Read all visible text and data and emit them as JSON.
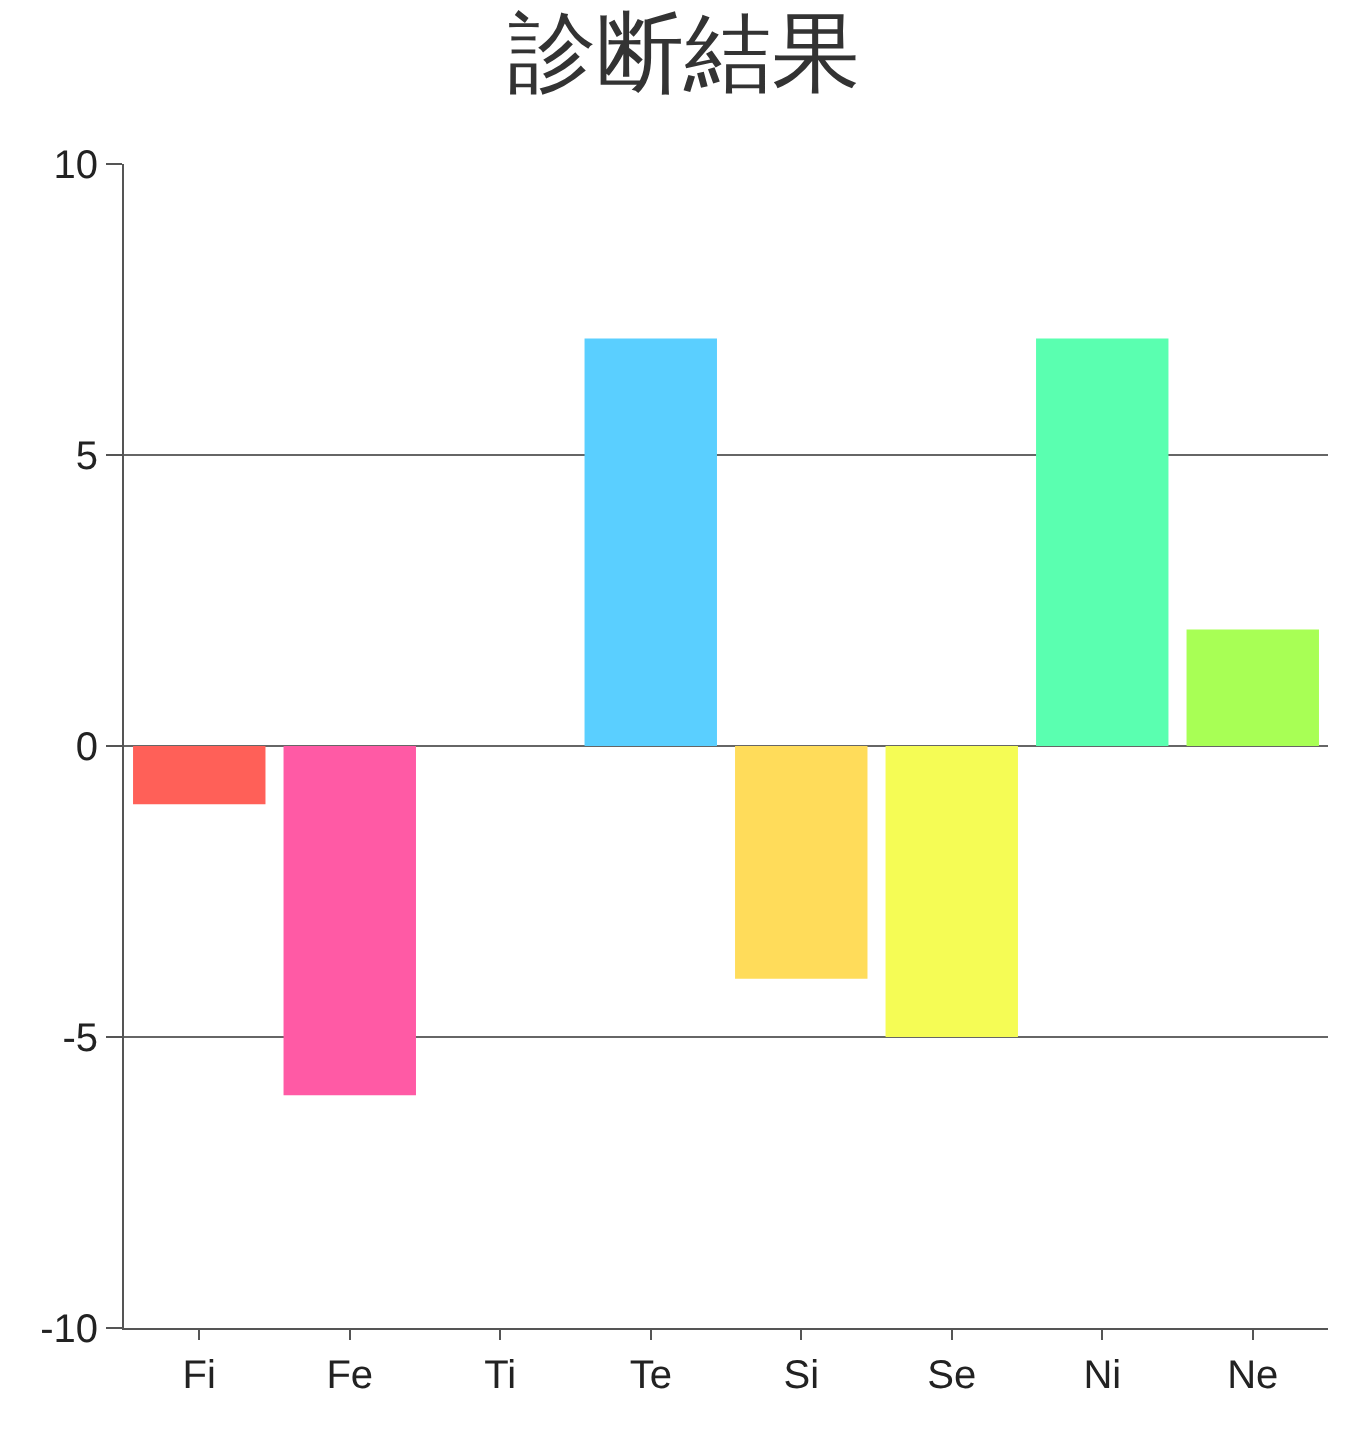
{
  "chart_data": {
    "type": "bar",
    "title": "診断結果",
    "categories": [
      "Fi",
      "Fe",
      "Ti",
      "Te",
      "Si",
      "Se",
      "Ni",
      "Ne"
    ],
    "values": [
      -1,
      -6,
      0,
      7,
      -4,
      -5,
      7,
      2
    ],
    "colors": [
      "#ff6058",
      "#ff5aa5",
      "#9966ff",
      "#5acfff",
      "#ffdc5a",
      "#f5fc55",
      "#5affb0",
      "#a8ff55"
    ],
    "ylim": [
      -10,
      10
    ],
    "yticks": [
      -10,
      -5,
      0,
      5,
      10
    ],
    "grid": "y"
  }
}
